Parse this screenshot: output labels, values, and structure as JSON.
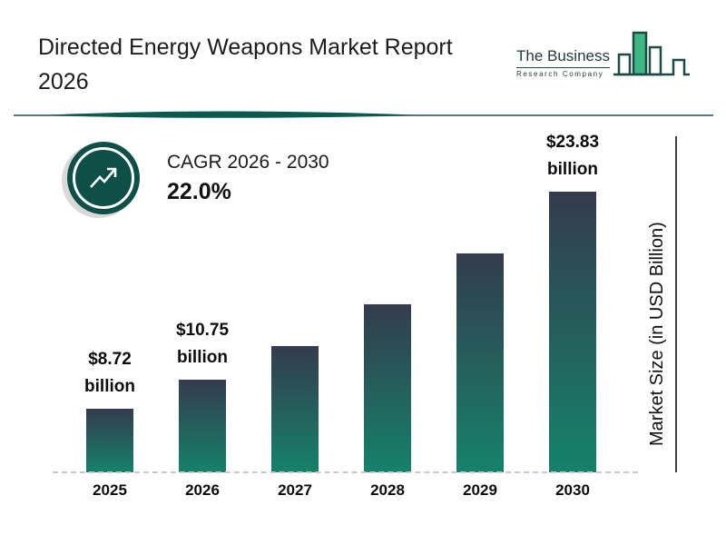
{
  "header": {
    "title_line1": "Directed Energy Weapons Market Report",
    "title_line2": "2026",
    "logo": {
      "line1": "The Business",
      "line2": "Research Company"
    }
  },
  "cagr": {
    "label": "CAGR 2026 - 2030",
    "value": "22.0%"
  },
  "chart_data": {
    "type": "bar",
    "title": "Directed Energy Weapons Market Report 2026",
    "categories": [
      "2025",
      "2026",
      "2027",
      "2028",
      "2029",
      "2030"
    ],
    "values": [
      8.72,
      10.75,
      13.12,
      16.0,
      19.53,
      23.83
    ],
    "value_labels": [
      "$8.72\nbillion",
      "$10.75\nbillion",
      null,
      null,
      null,
      "$23.83\nbillion"
    ],
    "ylabel": "Market Size (in USD Billion)",
    "ylim": [
      0,
      25
    ],
    "grid": false,
    "legend": false,
    "bar_gradient": [
      "#343b4e",
      "#15826a"
    ]
  },
  "colors": {
    "accent_teal": "#0b5a50",
    "circle_teal": "#0e4f48",
    "logo_green": "#3cb882",
    "text_dark": "#1c1c1c",
    "baseline_grey": "#c9c9c9"
  }
}
